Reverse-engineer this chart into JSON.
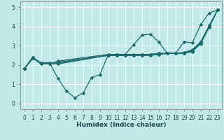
{
  "xlabel": "Humidex (Indice chaleur)",
  "xlim": [
    -0.5,
    23.5
  ],
  "ylim": [
    -0.3,
    5.3
  ],
  "xticks": [
    0,
    1,
    2,
    3,
    4,
    5,
    6,
    7,
    8,
    9,
    10,
    11,
    12,
    13,
    14,
    15,
    16,
    17,
    18,
    19,
    20,
    21,
    22,
    23
  ],
  "yticks": [
    0,
    1,
    2,
    3,
    4,
    5
  ],
  "bg_color": "#c2e8e8",
  "grid_color": "#ffffff",
  "line_color": "#1a6b6b",
  "lines": [
    {
      "x": [
        0,
        1,
        2,
        3,
        4,
        5,
        6,
        7,
        8,
        9,
        10,
        11,
        12,
        13,
        14,
        15,
        16,
        17,
        18,
        19,
        20,
        21,
        22,
        23
      ],
      "y": [
        1.8,
        2.4,
        2.1,
        2.1,
        1.3,
        0.65,
        0.3,
        0.55,
        1.35,
        1.5,
        2.55,
        2.55,
        2.55,
        3.05,
        3.55,
        3.6,
        3.2,
        2.6,
        2.6,
        3.2,
        3.15,
        4.1,
        4.7,
        4.85
      ]
    },
    {
      "x": [
        0,
        1,
        2,
        3,
        4,
        10,
        11,
        12,
        13,
        14,
        15,
        16,
        17,
        18,
        19,
        20,
        21,
        22,
        23
      ],
      "y": [
        1.8,
        2.4,
        2.05,
        2.05,
        2.2,
        2.55,
        2.55,
        2.55,
        2.55,
        2.55,
        2.55,
        2.6,
        2.6,
        2.6,
        2.65,
        2.8,
        3.2,
        4.0,
        4.85
      ]
    },
    {
      "x": [
        0,
        1,
        2,
        3,
        4,
        10,
        11,
        12,
        13,
        14,
        15,
        16,
        17,
        18,
        19,
        20,
        21,
        22,
        23
      ],
      "y": [
        1.8,
        2.35,
        2.1,
        2.1,
        2.15,
        2.5,
        2.5,
        2.5,
        2.5,
        2.55,
        2.55,
        2.6,
        2.6,
        2.6,
        2.6,
        2.75,
        3.2,
        4.05,
        4.85
      ]
    },
    {
      "x": [
        0,
        1,
        2,
        3,
        4,
        10,
        11,
        12,
        13,
        14,
        15,
        16,
        17,
        18,
        19,
        20,
        21,
        22,
        23
      ],
      "y": [
        1.8,
        2.35,
        2.1,
        2.1,
        2.1,
        2.5,
        2.5,
        2.5,
        2.5,
        2.5,
        2.5,
        2.55,
        2.6,
        2.6,
        2.6,
        2.7,
        3.15,
        4.0,
        4.85
      ]
    },
    {
      "x": [
        0,
        1,
        2,
        3,
        4,
        10,
        11,
        12,
        13,
        14,
        15,
        16,
        17,
        18,
        19,
        20,
        21,
        22,
        23
      ],
      "y": [
        1.8,
        2.35,
        2.05,
        2.05,
        2.05,
        2.5,
        2.5,
        2.5,
        2.5,
        2.5,
        2.5,
        2.55,
        2.6,
        2.6,
        2.6,
        2.7,
        3.1,
        3.95,
        4.85
      ]
    }
  ],
  "marker": "D",
  "markersize": 2.5,
  "linewidth": 0.9
}
